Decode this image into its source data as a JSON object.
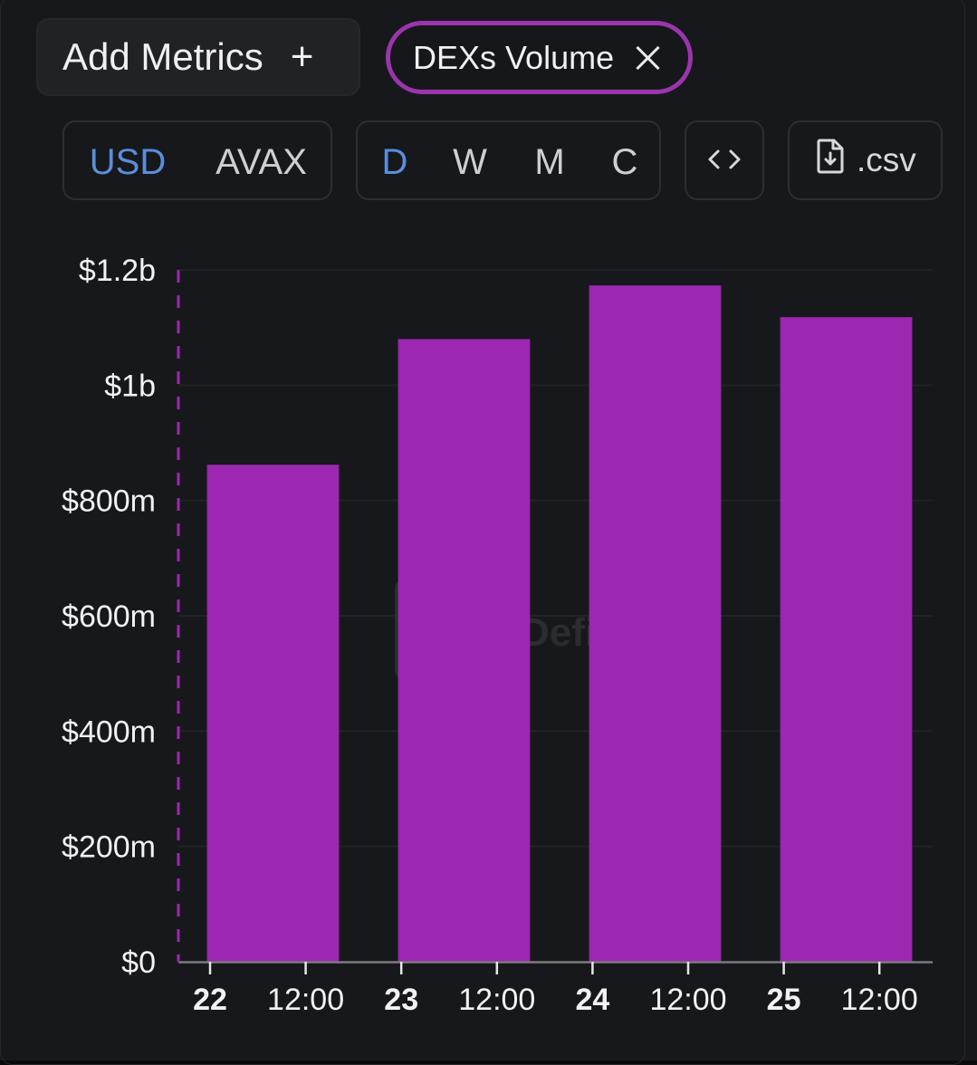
{
  "toolbar": {
    "add_metrics_label": "Add Metrics",
    "add_icon": "+",
    "metric_chip_label": "DEXs Volume",
    "currency_options": [
      "USD",
      "AVAX"
    ],
    "currency_selected": "USD",
    "period_options": [
      "D",
      "W",
      "M",
      "C"
    ],
    "period_selected": "D",
    "embed_icon": "code-icon",
    "embed_glyph": "< >",
    "csv_label": ".csv",
    "csv_icon": "file-download-icon"
  },
  "colors": {
    "accent": "#9c27b0",
    "selected_text": "#5b8edb",
    "background": "#17181b"
  },
  "chart_data": {
    "type": "bar",
    "title": "",
    "xlabel": "",
    "ylabel": "",
    "x_tick_labels": [
      "22",
      "12:00",
      "23",
      "12:00",
      "24",
      "12:00",
      "25",
      "12:00"
    ],
    "y_tick_labels": [
      "$0",
      "$200m",
      "$400m",
      "$600m",
      "$800m",
      "$1b",
      "$1.2b"
    ],
    "ylim": [
      0,
      1200000000
    ],
    "grid": true,
    "categories": [
      "22",
      "23",
      "24",
      "25"
    ],
    "series": [
      {
        "values": [
          862000000,
          1080000000,
          1173000000,
          1118000000
        ],
        "color": "#9c27b0"
      }
    ],
    "watermark_text": "Defi"
  }
}
